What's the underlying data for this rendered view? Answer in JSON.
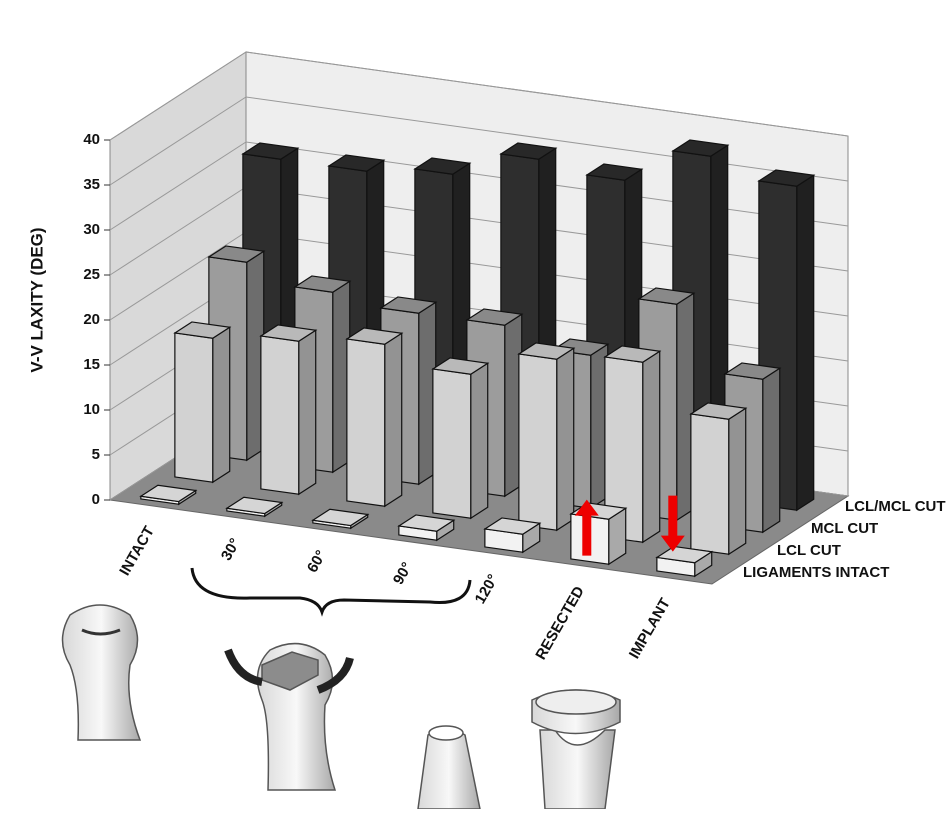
{
  "chart_data": {
    "type": "bar3d",
    "y_label": "V-V LAXITY (DEG)",
    "categories": [
      "INTACT",
      "30°",
      "60°",
      "90°",
      "120°",
      "RESECTED",
      "IMPLANT"
    ],
    "series": [
      {
        "name": "LIGAMENTS INTACT",
        "color": "#f2f2f2",
        "values": [
          0.3,
          0.3,
          0.3,
          1,
          2,
          5,
          1.5
        ]
      },
      {
        "name": "LCL CUT",
        "color": "#d2d2d2",
        "values": [
          16,
          17,
          18,
          16,
          19,
          20,
          15
        ]
      },
      {
        "name": "MCL CUT",
        "color": "#9c9c9c",
        "values": [
          22,
          20,
          19,
          19,
          17,
          24,
          17
        ]
      },
      {
        "name": "LCL/MCL CUT",
        "color": "#2e2e2e",
        "values": [
          31,
          31,
          32,
          35,
          34,
          38,
          36
        ]
      }
    ],
    "ylim": [
      0,
      40
    ],
    "yticks": [
      0,
      5,
      10,
      15,
      20,
      25,
      30,
      35,
      40
    ],
    "grid": true
  }
}
